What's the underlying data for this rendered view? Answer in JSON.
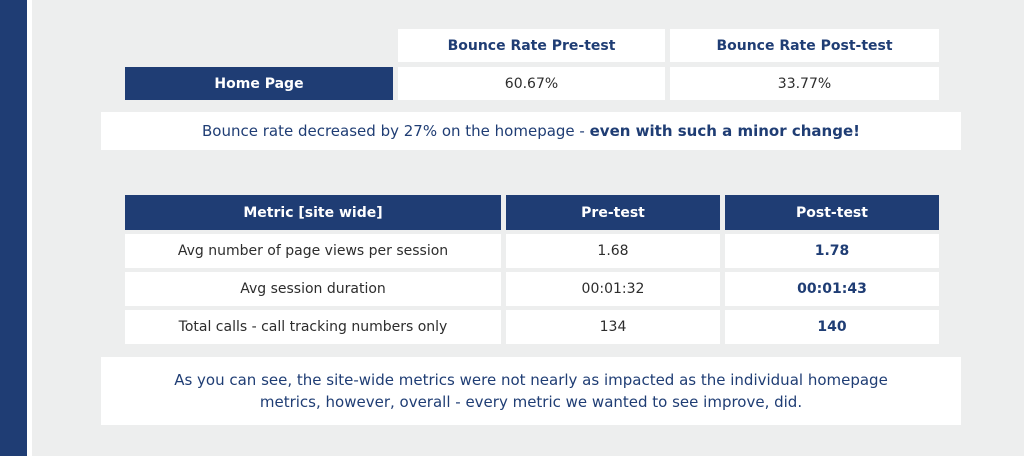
{
  "top_table": {
    "col_pre": "Bounce Rate Pre-test",
    "col_post": "Bounce Rate Post-test",
    "row_label": "Home Page",
    "pre_value": "60.67%",
    "post_value": "33.77%"
  },
  "note1": {
    "text": "Bounce rate decreased by 27% on the homepage - ",
    "emphasis": "even with such a minor change!"
  },
  "metrics_table": {
    "headers": [
      "Metric [site wide]",
      "Pre-test",
      "Post-test"
    ],
    "rows": [
      {
        "metric": "Avg number of page views per session",
        "pre": "1.68",
        "post": "1.78"
      },
      {
        "metric": "Avg session duration",
        "pre": "00:01:32",
        "post": "00:01:43"
      },
      {
        "metric": "Total calls - call tracking numbers only",
        "pre": "134",
        "post": "140"
      }
    ]
  },
  "note2": {
    "line1": "As you can see, the site-wide metrics were not nearly as impacted as the individual homepage",
    "line2": "metrics, however, overall - every metric we wanted to see improve, did."
  },
  "colors": {
    "navy": "#1f3d74",
    "panel": "#edeeee",
    "text": "#2d2d2d"
  }
}
